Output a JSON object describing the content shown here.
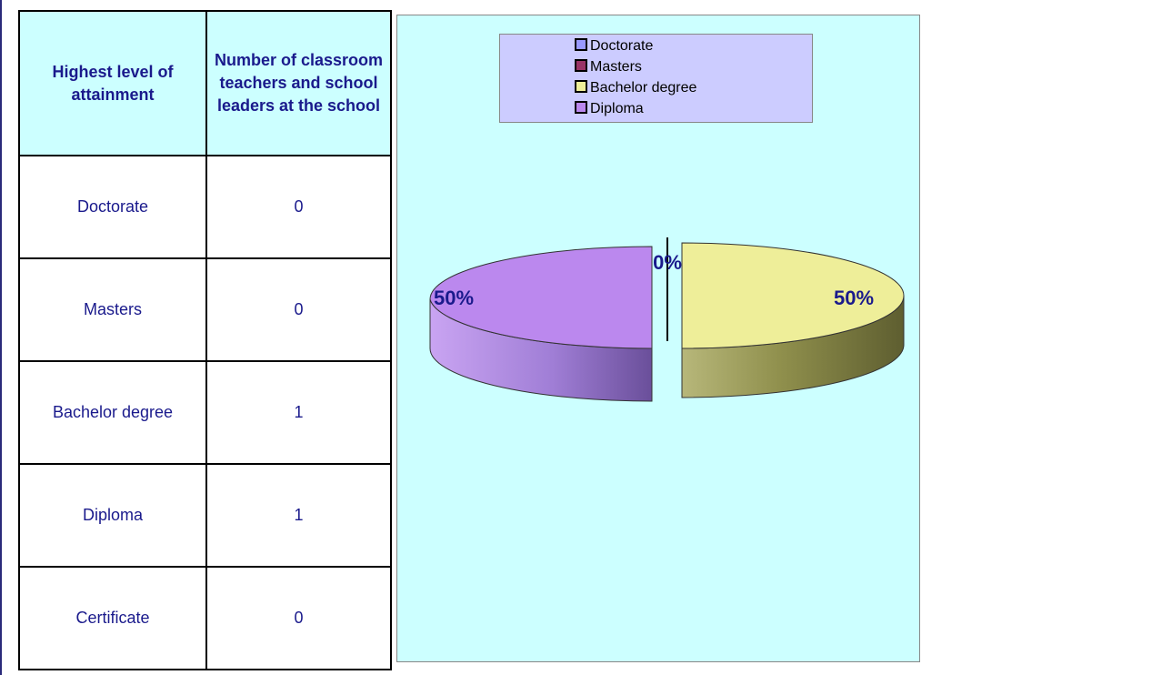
{
  "table": {
    "header": {
      "col1": "Highest level of attainment",
      "col2": "Number of classroom teachers and school leaders at the school"
    },
    "rows": [
      {
        "level": "Doctorate",
        "count": "0"
      },
      {
        "level": "Masters",
        "count": "0"
      },
      {
        "level": "Bachelor degree",
        "count": "1"
      },
      {
        "level": "Diploma",
        "count": "1"
      },
      {
        "level": "Certificate",
        "count": "0"
      }
    ]
  },
  "chart_data": {
    "type": "pie",
    "style": "3d-exploded",
    "labels": [
      "Doctorate",
      "Masters",
      "Bachelor degree",
      "Diploma"
    ],
    "values": [
      0,
      0,
      1,
      1
    ],
    "percent_labels": [
      "0%",
      "50%",
      "50%"
    ],
    "colors": {
      "Doctorate": "#9999ff",
      "Masters": "#993366",
      "Bachelor degree": "#eeee99",
      "Diploma": "#bb88ee"
    },
    "legend": {
      "position": "top",
      "items": [
        "Doctorate",
        "Masters",
        "Bachelor degree",
        "Diploma"
      ]
    },
    "background": "#ccffff",
    "legend_background": "#ccccff"
  }
}
